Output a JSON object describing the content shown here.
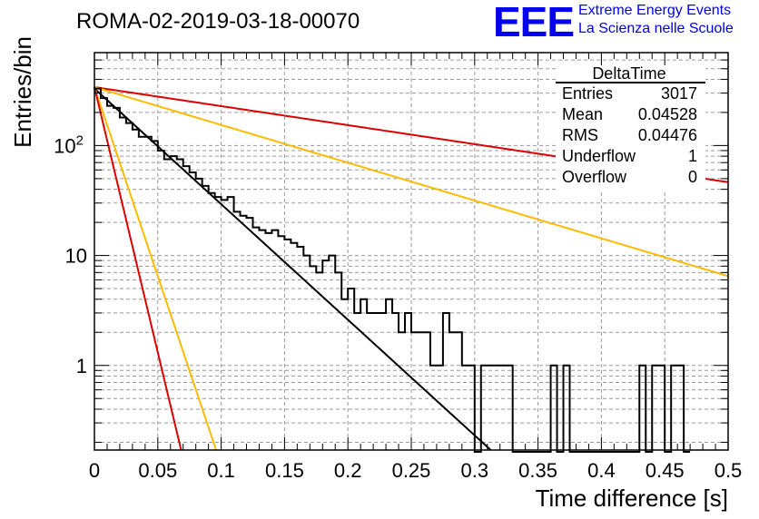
{
  "run_title": "ROMA-02-2019-03-18-00070",
  "logo": {
    "mark": "EEE",
    "line1": "Extreme Energy Events",
    "line2": "La Scienza nelle Scuole"
  },
  "stats": {
    "title": "DeltaTime",
    "rows": [
      {
        "label": "Entries",
        "value": "3017"
      },
      {
        "label": "Mean",
        "value": "0.04528"
      },
      {
        "label": "RMS",
        "value": "0.04476"
      },
      {
        "label": "Underflow",
        "value": "1"
      },
      {
        "label": "Overflow",
        "value": "0"
      }
    ]
  },
  "chart_data": {
    "type": "histogram",
    "title": "ROMA-02-2019-03-18-00070",
    "xlabel": "Time difference [s]",
    "ylabel": "Entries/bin",
    "xlim": [
      0,
      0.5
    ],
    "ylim": [
      0.17,
      700
    ],
    "yscale": "log",
    "grid": true,
    "xticks": [
      "0",
      "0.05",
      "0.1",
      "0.15",
      "0.2",
      "0.25",
      "0.3",
      "0.35",
      "0.4",
      "0.45",
      "0.5"
    ],
    "yticks": [
      {
        "value": 1,
        "label": "1"
      },
      {
        "value": 10,
        "label": "10"
      },
      {
        "value": 100,
        "label": "10^2"
      }
    ],
    "bin_width": 0.005,
    "histogram_counts": [
      330,
      270,
      230,
      220,
      180,
      160,
      140,
      120,
      120,
      110,
      90,
      75,
      80,
      75,
      65,
      57,
      50,
      43,
      37,
      34,
      32,
      34,
      25,
      23,
      22,
      18,
      17,
      16,
      17,
      15,
      14,
      13,
      12,
      10,
      8,
      7,
      9,
      10,
      7,
      4,
      5,
      3,
      4,
      3,
      3,
      3,
      4,
      3,
      2,
      3,
      2,
      2,
      2,
      1,
      1,
      3,
      2,
      2,
      1,
      1,
      0,
      1,
      1,
      1,
      1,
      1,
      0,
      0,
      0,
      0,
      0,
      0,
      1,
      0,
      1,
      0,
      0,
      0,
      0,
      0,
      0,
      0,
      0,
      0,
      0,
      0,
      1,
      0,
      1,
      1,
      0,
      1,
      1,
      0
    ],
    "series": [
      {
        "name": "fit",
        "color": "#000000",
        "A": 330,
        "tau": 0.0413
      },
      {
        "name": "red-slow",
        "color": "#dd0000",
        "A": 340,
        "tau": 0.2511
      },
      {
        "name": "yellow-slow",
        "color": "#ffbb00",
        "A": 340,
        "tau": 0.1263
      },
      {
        "name": "yellow-fast",
        "color": "#ffbb00",
        "A": 340,
        "tau": 0.01263
      },
      {
        "name": "red-fast",
        "color": "#dd0000",
        "A": 340,
        "tau": 0.009
      }
    ]
  }
}
